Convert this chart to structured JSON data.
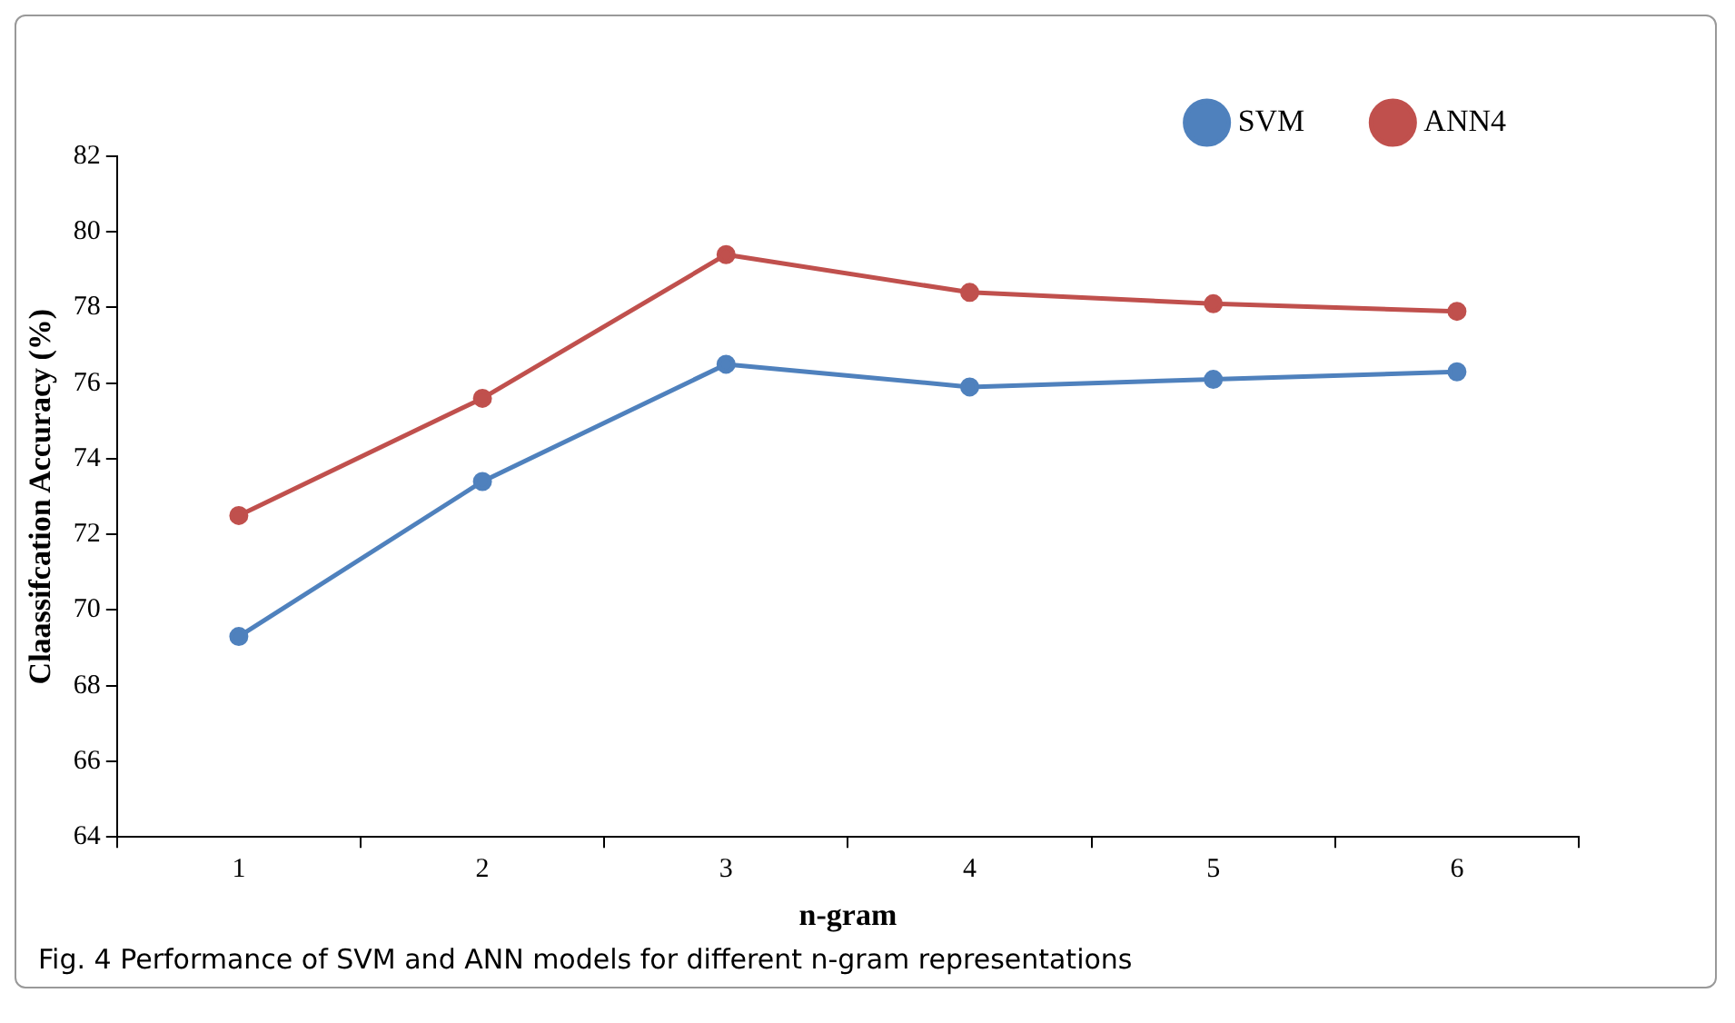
{
  "chart_data": {
    "type": "line",
    "xlabel": "n-gram",
    "ylabel": "Claassifcation Accuracy (%)",
    "categories": [
      "1",
      "2",
      "3",
      "4",
      "5",
      "6"
    ],
    "series": [
      {
        "name": "SVM",
        "color": "#4f81bd",
        "values": [
          69.3,
          73.4,
          76.5,
          75.9,
          76.1,
          76.3
        ]
      },
      {
        "name": "ANN4",
        "color": "#c0504d",
        "values": [
          72.5,
          75.6,
          79.4,
          78.4,
          78.1,
          77.9
        ]
      }
    ],
    "ylim": [
      64,
      82
    ],
    "yticks": [
      64,
      66,
      68,
      70,
      72,
      74,
      76,
      78,
      80,
      82
    ],
    "grid": false,
    "legend": "top right",
    "marker": "circle",
    "line_style": "solid",
    "annotations": [
      "Fig. 4  Performance of SVM and ANN models for different n-gram representations"
    ]
  }
}
